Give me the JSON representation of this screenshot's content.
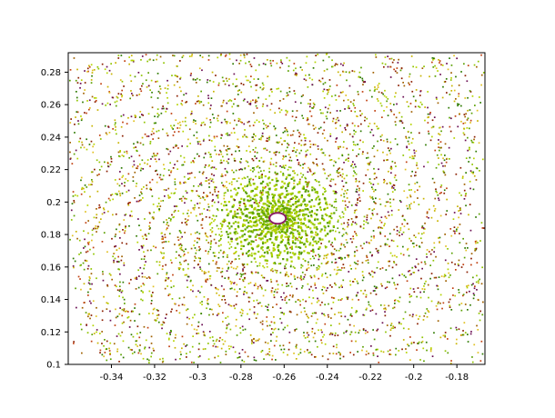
{
  "chart_data": {
    "type": "scatter",
    "title": "",
    "xlabel": "",
    "ylabel": "",
    "xlim": [
      -0.36,
      -0.167
    ],
    "ylim": [
      0.1,
      0.292
    ],
    "x_ticks": [
      "-0.34",
      "-0.32",
      "-0.3",
      "-0.28",
      "-0.26",
      "-0.24",
      "-0.22",
      "-0.2",
      "-0.18"
    ],
    "y_ticks": [
      "0.1",
      "0.12",
      "0.14",
      "0.16",
      "0.18",
      "0.2",
      "0.22",
      "0.24",
      "0.26",
      "0.28"
    ],
    "grid": false,
    "legend": "none",
    "spiral_center": [
      -0.263,
      0.19
    ],
    "spiral_arms": 14,
    "background_color": "#ffffff",
    "point_colors": [
      "#5aa000",
      "#8fc400",
      "#b5d400",
      "#c8b400",
      "#a06000",
      "#8a1e00",
      "#c04010",
      "#6a0d52",
      "#2d7a00",
      "#e0c020"
    ]
  }
}
